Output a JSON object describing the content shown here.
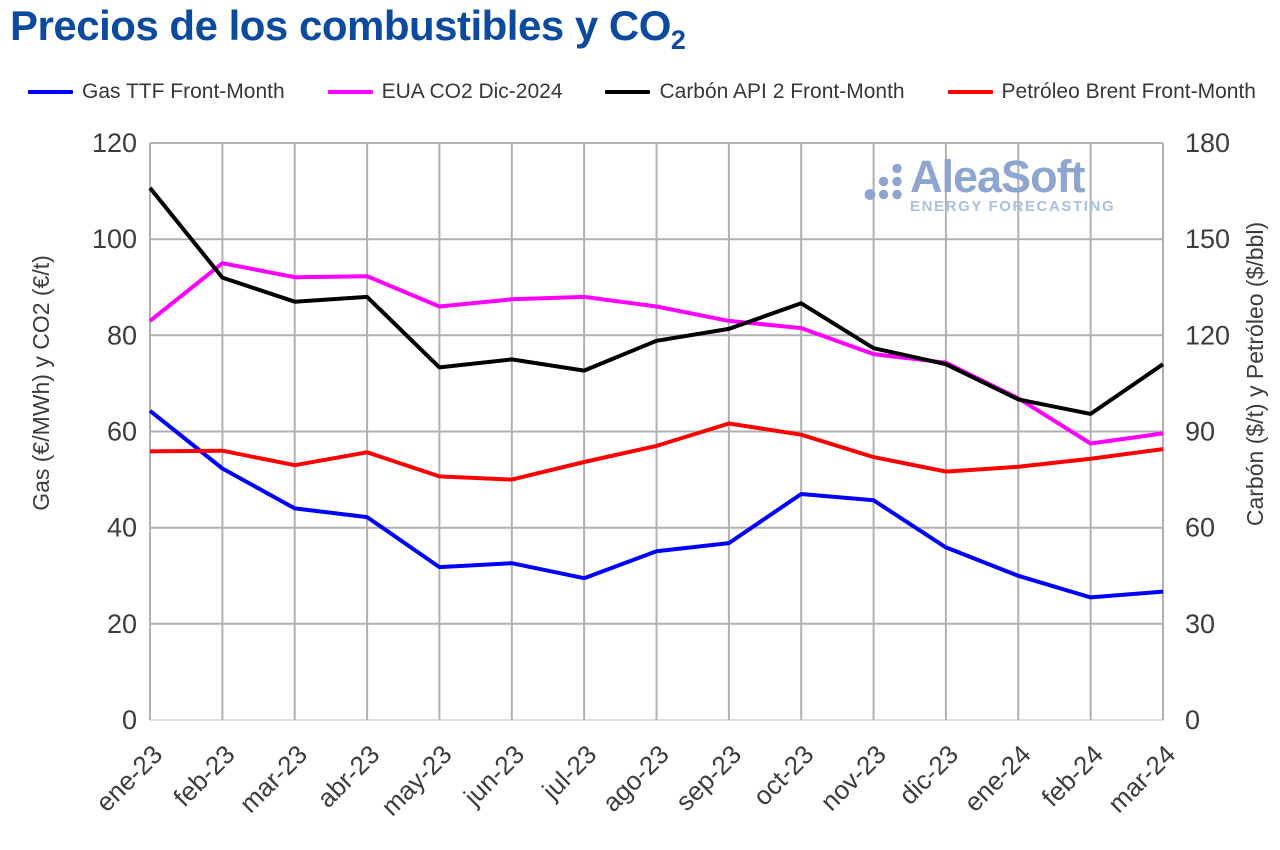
{
  "page": {
    "title_text": "Precios de los combustibles y CO",
    "title_subscript": "2"
  },
  "logo": {
    "name": "AleaSoft",
    "tagline": "ENERGY FORECASTING"
  },
  "chart_data": {
    "type": "line",
    "title": "Precios de los combustibles y CO2",
    "grid": true,
    "legend_position": "top",
    "categories": [
      "ene-23",
      "feb-23",
      "mar-23",
      "abr-23",
      "may-23",
      "jun-23",
      "jul-23",
      "ago-23",
      "sep-23",
      "oct-23",
      "nov-23",
      "dic-23",
      "ene-24",
      "feb-24",
      "mar-24"
    ],
    "left_axis": {
      "label": "Gas (€/MWh) y CO2 (€/t)",
      "min": 0,
      "max": 120,
      "ticks": [
        0,
        20,
        40,
        60,
        80,
        100,
        120
      ]
    },
    "right_axis": {
      "label": "Carbón ($/t) y Petróleo ($/bbl)",
      "min": 0,
      "max": 180,
      "ticks": [
        0,
        30,
        60,
        90,
        120,
        150,
        180
      ]
    },
    "series": [
      {
        "id": "gas-ttf",
        "name": "Gas TTF Front-Month",
        "axis": "left",
        "unit": "€/MWh",
        "color": "#0000ff",
        "values": [
          64.3,
          52.3,
          44.0,
          42.2,
          31.8,
          32.6,
          29.5,
          35.1,
          36.8,
          47.0,
          45.7,
          35.9,
          30.0,
          25.5,
          26.7
        ]
      },
      {
        "id": "eua-co2",
        "name": "EUA CO2 Dic-2024",
        "axis": "left",
        "unit": "€/t",
        "color": "#ff00ff",
        "values": [
          83.0,
          95.0,
          92.1,
          92.3,
          86.0,
          87.5,
          88.0,
          86.0,
          83.0,
          81.5,
          76.1,
          74.3,
          66.9,
          57.5,
          59.6
        ]
      },
      {
        "id": "carbon-api2",
        "name": "Carbón API 2 Front-Month",
        "axis": "right",
        "unit": "$/t",
        "color": "#000000",
        "values": [
          166.0,
          138.0,
          130.5,
          132.0,
          110.0,
          112.5,
          109.0,
          118.3,
          122.0,
          130.0,
          116.0,
          111.0,
          100.0,
          95.5,
          111.0
        ]
      },
      {
        "id": "brent",
        "name": "Petróleo Brent Front-Month",
        "axis": "right",
        "unit": "$/bbl",
        "color": "#ff0000",
        "values": [
          83.8,
          84.0,
          79.5,
          83.5,
          76.0,
          75.0,
          80.5,
          85.5,
          92.5,
          89.0,
          82.0,
          77.5,
          79.0,
          81.5,
          84.5
        ]
      }
    ]
  }
}
